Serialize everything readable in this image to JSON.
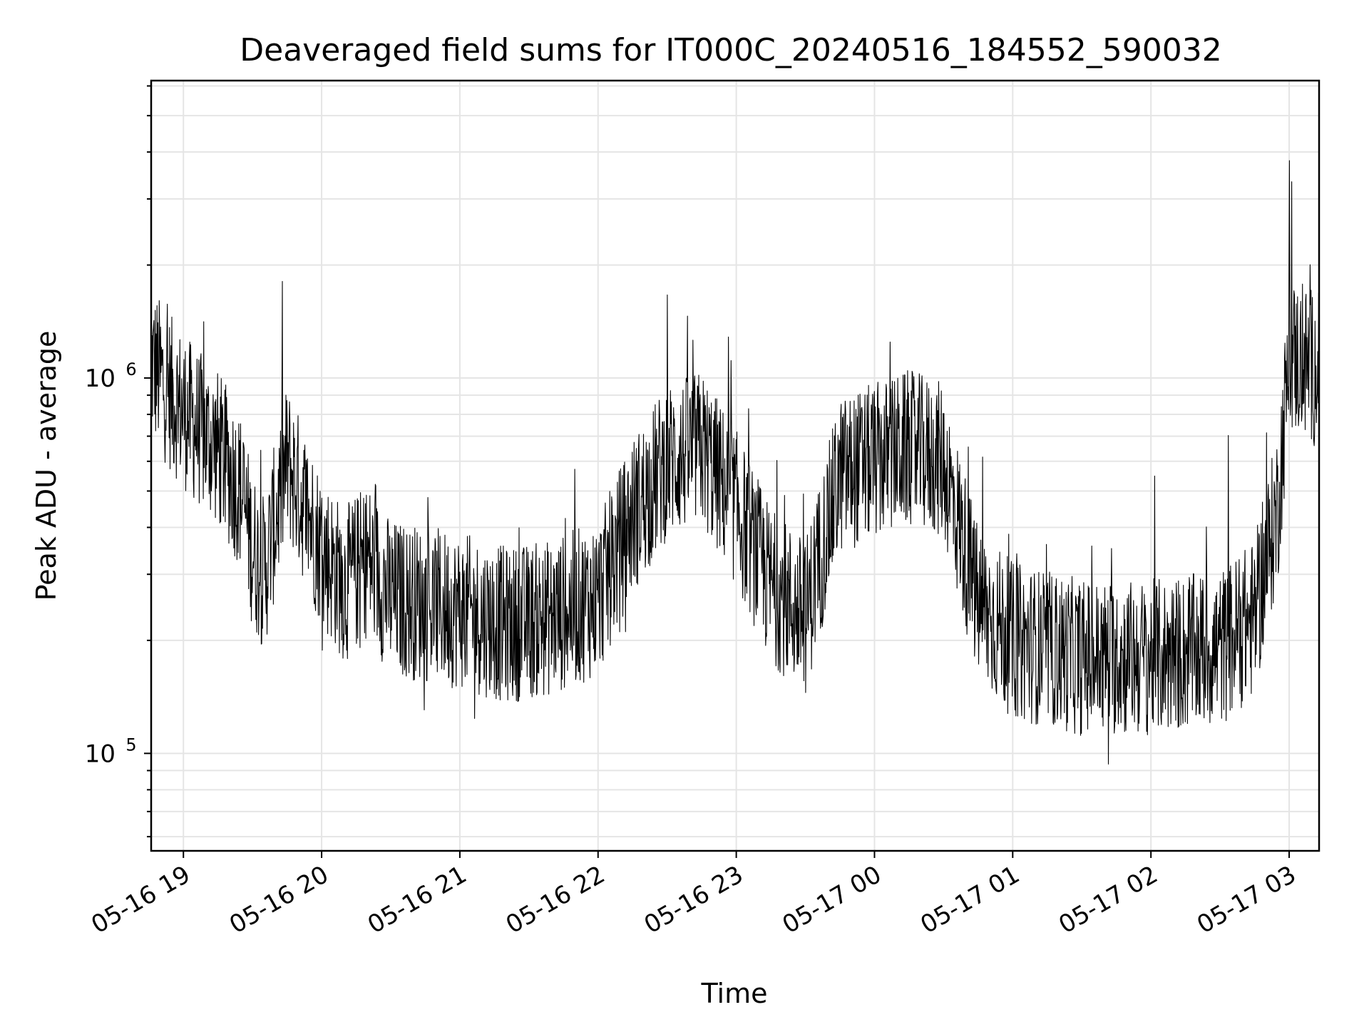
{
  "chart_data": {
    "type": "line",
    "title": "Deaveraged field sums for IT000C_20240516_184552_590032",
    "xlabel": "Time",
    "ylabel": "Peak ADU - average",
    "yscale": "log",
    "ylim": [
      55000,
      6200000
    ],
    "xlim": [
      "2024-05-16 18:46",
      "2024-05-17 03:13"
    ],
    "grid": true,
    "x_ticks": [
      "05-16 19",
      "05-16 20",
      "05-16 21",
      "05-16 22",
      "05-16 23",
      "05-17 00",
      "05-17 01",
      "05-17 02",
      "05-17 03"
    ],
    "y_ticks": [
      {
        "base": "10",
        "exp": "5",
        "value": 100000
      },
      {
        "base": "10",
        "exp": "6",
        "value": 1000000
      }
    ],
    "series": [
      {
        "color": "#000000",
        "times": [
          "2024-05-16 18:46",
          "2024-05-16 18:55",
          "2024-05-16 19:05",
          "2024-05-16 19:15",
          "2024-05-16 19:25",
          "2024-05-16 19:30",
          "2024-05-16 19:35",
          "2024-05-16 19:45",
          "2024-05-16 20:00",
          "2024-05-16 20:10",
          "2024-05-16 20:20",
          "2024-05-16 20:30",
          "2024-05-16 21:00",
          "2024-05-16 21:20",
          "2024-05-16 21:40",
          "2024-05-16 22:00",
          "2024-05-16 22:15",
          "2024-05-16 22:30",
          "2024-05-16 22:45",
          "2024-05-16 23:00",
          "2024-05-16 23:15",
          "2024-05-16 23:30",
          "2024-05-16 23:45",
          "2024-05-17 00:00",
          "2024-05-17 00:15",
          "2024-05-17 00:30",
          "2024-05-17 00:45",
          "2024-05-17 01:00",
          "2024-05-17 01:30",
          "2024-05-17 02:00",
          "2024-05-17 02:30",
          "2024-05-17 02:45",
          "2024-05-17 02:55",
          "2024-05-17 03:00",
          "2024-05-17 03:13"
        ],
        "values": [
          1100000,
          900000,
          750000,
          650000,
          500000,
          350000,
          300000,
          600000,
          350000,
          280000,
          330000,
          260000,
          240000,
          220000,
          230000,
          260000,
          430000,
          600000,
          650000,
          450000,
          280000,
          230000,
          550000,
          600000,
          650000,
          600000,
          250000,
          200000,
          180000,
          180000,
          190000,
          230000,
          450000,
          1150000,
          1050000
        ]
      }
    ]
  }
}
